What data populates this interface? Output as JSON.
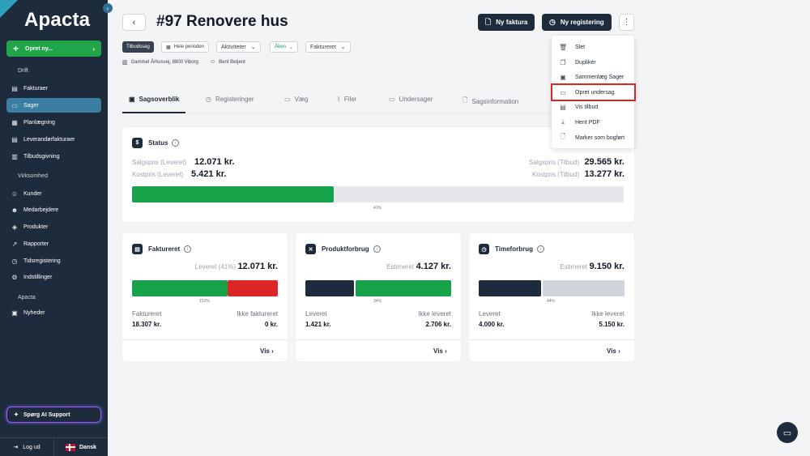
{
  "sidebar": {
    "logo": "Apacta",
    "collapse_icon": "‹",
    "new_button": "Opret ny...",
    "sections": {
      "drift": "Drift",
      "virksomhed": "Virksomhed",
      "apacta": "Apacta"
    },
    "items": [
      {
        "label": "Fakturaer",
        "icon": "invoice-icon"
      },
      {
        "label": "Sager",
        "icon": "folder-icon"
      },
      {
        "label": "Planlægning",
        "icon": "calendar-icon"
      },
      {
        "label": "Leverandørfakturaer",
        "icon": "supplier-invoice-icon"
      },
      {
        "label": "Tilbudsgivning",
        "icon": "offer-icon"
      },
      {
        "label": "Kunder",
        "icon": "customers-icon"
      },
      {
        "label": "Medarbejdere",
        "icon": "employees-icon"
      },
      {
        "label": "Produkter",
        "icon": "products-icon"
      },
      {
        "label": "Rapporter",
        "icon": "reports-icon"
      },
      {
        "label": "Tidsregistering",
        "icon": "time-icon"
      },
      {
        "label": "Indstillinger",
        "icon": "settings-icon"
      },
      {
        "label": "Nyheder",
        "icon": "news-icon"
      }
    ],
    "ai_support": "Spørg AI Support",
    "logout": "Log ud",
    "language": "Dansk"
  },
  "header": {
    "title": "#97 Renovere hus",
    "new_invoice": "Ny faktura",
    "new_registration": "Ny registering"
  },
  "filters": {
    "type": "Tilbudssag",
    "period": "Hele perioden",
    "activities": "Aktiviteter",
    "status": "Åben",
    "invoiced": "Faktureret"
  },
  "meta": {
    "address": "Gammel Århusvej, 8800 Viborg",
    "person": "Bent Betjent"
  },
  "tabs": [
    "Sagsoverblik",
    "Registeringer",
    "Væg",
    "Filer",
    "Undersager",
    "Sagsinformation"
  ],
  "status_card": {
    "title": "Status",
    "sales_delivered_label": "Salgspris (Leveret)",
    "sales_delivered": "12.071 kr.",
    "cost_delivered_label": "Kostpris (Leveret)",
    "cost_delivered": "5.421 kr.",
    "sales_offer_label": "Salgspris (Tilbud)",
    "sales_offer": "29.565 kr.",
    "cost_offer_label": "Kostpris (Tilbud)",
    "cost_offer": "13.277 kr.",
    "progress_pct": "41%",
    "progress_value": 0.41
  },
  "cards": [
    {
      "title": "Faktureret",
      "label": "Leveret (41%)",
      "value": "12.071 kr.",
      "pct": "152%",
      "left_label": "Faktureret",
      "left_value": "18.307 kr.",
      "right_label": "Ikke faktureret",
      "right_value": "0 kr.",
      "link": "Vis"
    },
    {
      "title": "Produktforbrug",
      "label": "Estimeret",
      "value": "4.127 kr.",
      "pct": "34%",
      "left_label": "Leveret",
      "left_value": "1.421 kr.",
      "right_label": "Ikke leveret",
      "right_value": "2.706 kr.",
      "link": "Vis"
    },
    {
      "title": "Timeforbrug",
      "label": "Estimeret",
      "value": "9.150 kr.",
      "pct": "44%",
      "left_label": "Leveret",
      "left_value": "4.000 kr.",
      "right_label": "Ikke leveret",
      "right_value": "5.150 kr.",
      "link": "Vis"
    }
  ],
  "menu": [
    "Slet",
    "Duplikér",
    "Sammenlæg Sager",
    "Opret undersag",
    "Vis tilbud",
    "Hent PDF",
    "Marker som bogført"
  ],
  "colors": {
    "navy": "#1e2b3c",
    "green": "#16a34a",
    "red": "#dc2626",
    "accent": "#3b7ea1"
  }
}
